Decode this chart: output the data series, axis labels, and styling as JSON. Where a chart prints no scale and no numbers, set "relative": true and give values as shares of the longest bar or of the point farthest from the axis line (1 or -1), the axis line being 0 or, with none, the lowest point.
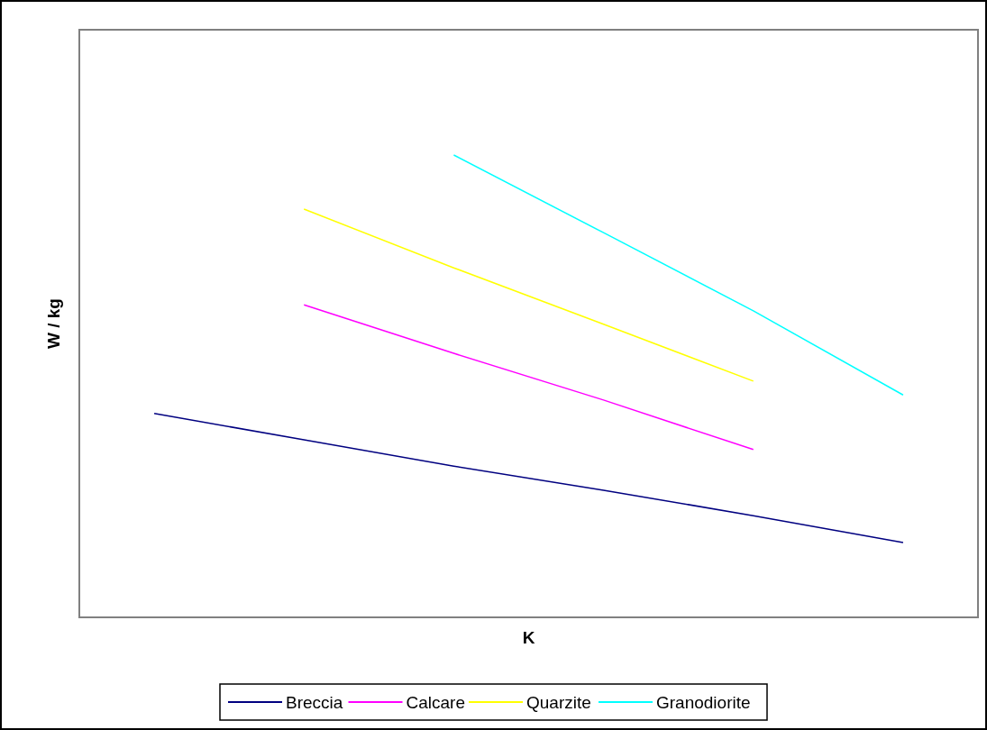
{
  "chart_data": {
    "type": "line",
    "relative": true,
    "xlabel": "K",
    "ylabel": "W / kg",
    "categories": [
      null,
      null,
      null,
      null,
      null,
      null
    ],
    "legend": "bottom",
    "marker": "none",
    "line_style": "solid",
    "series": [
      {
        "name": "Breccia",
        "color": "#000080",
        "values": [
          0.441,
          0.384,
          0.327,
          0.275,
          0.22,
          0.162
        ]
      },
      {
        "name": "Calcare",
        "color": "#ff00ff",
        "values": [
          null,
          0.676,
          0.571,
          0.47,
          0.363,
          null
        ]
      },
      {
        "name": "Quarzite",
        "color": "#ffff00",
        "values": [
          null,
          0.883,
          0.756,
          0.634,
          0.511,
          null
        ]
      },
      {
        "name": "Granodiorite",
        "color": "#00ffff",
        "values": [
          null,
          null,
          1,
          0.832,
          0.663,
          0.481
        ]
      }
    ]
  }
}
